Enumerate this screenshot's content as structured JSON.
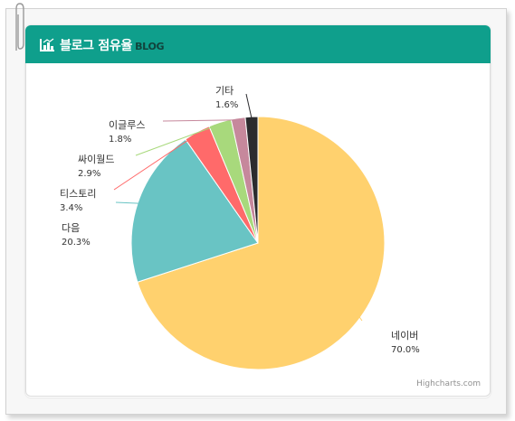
{
  "header": {
    "title": "블로그 점유율",
    "subtitle": "BLOG",
    "icon": "bar-chart-icon",
    "color": "#0f9f8c"
  },
  "credit": "Highcharts.com",
  "chart_data": {
    "type": "pie",
    "title": "",
    "slices": [
      {
        "label": "네이버",
        "value_label": "70.0%",
        "value": 70.0,
        "color": "#ffd16e"
      },
      {
        "label": "다음",
        "value_label": "20.3%",
        "value": 20.3,
        "color": "#69c4c4"
      },
      {
        "label": "티스토리",
        "value_label": "3.4%",
        "value": 3.4,
        "color": "#ff6a6a"
      },
      {
        "label": "싸이월드",
        "value_label": "2.9%",
        "value": 2.9,
        "color": "#a8d97c"
      },
      {
        "label": "이글루스",
        "value_label": "1.8%",
        "value": 1.8,
        "color": "#c6889c"
      },
      {
        "label": "기타",
        "value_label": "1.6%",
        "value": 1.6,
        "color": "#2b2b2e"
      }
    ]
  }
}
